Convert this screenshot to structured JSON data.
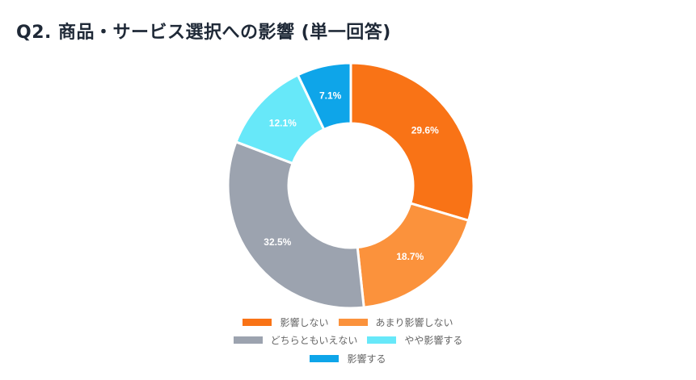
{
  "title": "Q2. 商品・サービス選択への影響 (単一回答)",
  "chart_data": {
    "type": "pie",
    "variant": "donut",
    "title": "Q2. 商品・サービス選択への影響 (単一回答)",
    "categories": [
      "影響しない",
      "あまり影響しない",
      "どちらともいえない",
      "やや影響する",
      "影響する"
    ],
    "values": [
      29.6,
      18.7,
      32.5,
      12.1,
      7.1
    ],
    "labels": [
      "29.6%",
      "18.7%",
      "32.5%",
      "12.1%",
      "7.1%"
    ],
    "colors": [
      "#f97316",
      "#fb923c",
      "#9ca3af",
      "#67e8f9",
      "#0ea5e9"
    ],
    "legend_position": "bottom"
  }
}
